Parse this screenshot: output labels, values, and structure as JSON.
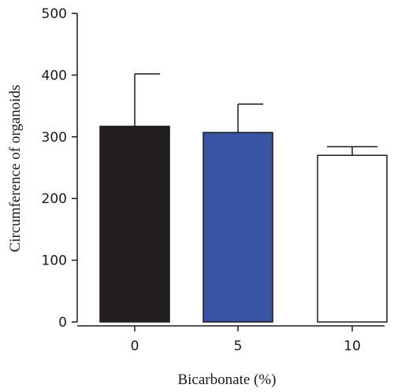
{
  "chart_data": {
    "type": "bar",
    "title": "",
    "xlabel": "Bicarbonate (%)",
    "ylabel": "Circumference of organoids",
    "categories": [
      "0",
      "5",
      "10"
    ],
    "values": [
      317,
      307,
      270
    ],
    "error_upper": [
      402,
      353,
      284
    ],
    "bar_colors": [
      "#231f20",
      "#3a54a4",
      "#ffffff"
    ],
    "ylim": [
      0,
      500
    ],
    "yticks": [
      "0",
      "100",
      "200",
      "300",
      "400",
      "500"
    ],
    "grid": false,
    "legend": "none"
  }
}
